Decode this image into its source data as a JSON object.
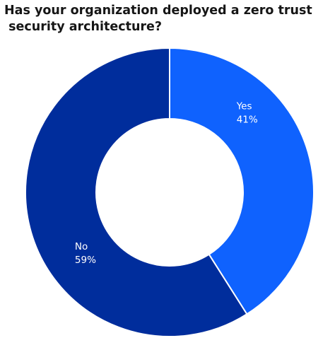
{
  "chart_data": {
    "type": "pie",
    "subtype": "donut",
    "title": "Has your organization deployed a zero trust\n security architecture?",
    "categories": [
      "Yes",
      "No"
    ],
    "values": [
      41,
      59
    ],
    "value_labels": [
      "41%",
      "59%"
    ],
    "colors": [
      "#0f62fe",
      "#002d9c"
    ],
    "legend": "none"
  }
}
